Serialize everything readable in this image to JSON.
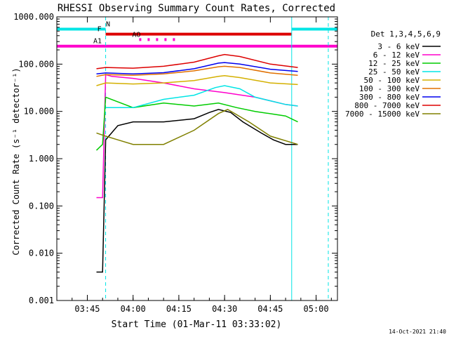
{
  "chart_data": {
    "type": "line",
    "title": "RHESSI Observing Summary Count Rates, Corrected",
    "xlabel": "Start Time (01-Mar-11 03:33:02)",
    "ylabel": "Corrected Count Rate (s⁻¹ detector⁻¹)",
    "y_scale": "log",
    "ylim": [
      0.001,
      1000
    ],
    "xlim": [
      "03:35",
      "05:07"
    ],
    "x_ticks": [
      "03:45",
      "04:00",
      "04:15",
      "04:30",
      "04:45",
      "05:00"
    ],
    "y_ticks": [
      "0.001",
      "0.010",
      "0.100",
      "1.000",
      "10.000",
      "100.000",
      "1000.000"
    ],
    "grid": false,
    "legend_title": "Det 1,3,4,5,6,9",
    "legend_position": "right",
    "series": [
      {
        "name": "3 - 6 keV",
        "color": "#000000",
        "x": [
          "03:48",
          "03:50",
          "03:51",
          "03:55",
          "04:00",
          "04:10",
          "04:20",
          "04:25",
          "04:28",
          "04:32",
          "04:36",
          "04:42",
          "04:46",
          "04:50",
          "04:54"
        ],
        "y": [
          0.004,
          0.004,
          2.5,
          5,
          6,
          6,
          7,
          9.5,
          11,
          9.5,
          6,
          3.5,
          2.5,
          2,
          2
        ]
      },
      {
        "name": "6 - 12 keV",
        "color": "#ff00cc",
        "x": [
          "03:48",
          "03:50",
          "03:51",
          "03:53",
          "04:00",
          "04:10",
          "04:20",
          "04:30",
          "04:40",
          "04:50",
          "04:54"
        ],
        "y": [
          0.15,
          0.15,
          60,
          55,
          50,
          40,
          30,
          25,
          20,
          14,
          13
        ]
      },
      {
        "name": "12 - 25 keV",
        "color": "#00cc00",
        "x": [
          "03:48",
          "03:50",
          "03:51",
          "04:00",
          "04:10",
          "04:20",
          "04:28",
          "04:34",
          "04:40",
          "04:50",
          "04:54"
        ],
        "y": [
          1.5,
          2,
          20,
          12,
          15,
          13,
          15,
          12,
          10,
          8,
          6
        ]
      },
      {
        "name": "25 - 50 keV",
        "color": "#00e5e5",
        "x": [
          "03:51",
          "04:00",
          "04:10",
          "04:20",
          "04:27",
          "04:30",
          "04:35",
          "04:40",
          "04:50",
          "04:54"
        ],
        "y": [
          12,
          12,
          18,
          22,
          32,
          35,
          30,
          20,
          14,
          13
        ]
      },
      {
        "name": "50 - 100 keV",
        "color": "#d4b000",
        "x": [
          "03:48",
          "03:51",
          "04:00",
          "04:10",
          "04:20",
          "04:28",
          "04:30",
          "04:35",
          "04:45",
          "04:54"
        ],
        "y": [
          35,
          40,
          38,
          40,
          45,
          55,
          57,
          52,
          40,
          37
        ]
      },
      {
        "name": "100 - 300 keV",
        "color": "#e07000",
        "x": [
          "03:48",
          "03:51",
          "04:00",
          "04:10",
          "04:20",
          "04:28",
          "04:30",
          "04:35",
          "04:45",
          "04:54"
        ],
        "y": [
          55,
          60,
          58,
          62,
          72,
          88,
          90,
          85,
          65,
          58
        ]
      },
      {
        "name": "300 - 800 keV",
        "color": "#0000ee",
        "x": [
          "03:48",
          "03:51",
          "04:00",
          "04:10",
          "04:20",
          "04:28",
          "04:30",
          "04:35",
          "04:45",
          "04:54"
        ],
        "y": [
          62,
          65,
          62,
          66,
          80,
          105,
          108,
          100,
          78,
          70
        ]
      },
      {
        "name": "800 - 7000 keV",
        "color": "#dd0000",
        "x": [
          "03:48",
          "03:51",
          "04:00",
          "04:10",
          "04:20",
          "04:28",
          "04:30",
          "04:35",
          "04:45",
          "04:54"
        ],
        "y": [
          80,
          85,
          82,
          90,
          110,
          150,
          160,
          145,
          100,
          85
        ]
      },
      {
        "name": "7000 - 15000 keV",
        "color": "#808000",
        "x": [
          "03:48",
          "03:51",
          "03:55",
          "04:00",
          "04:10",
          "04:20",
          "04:28",
          "04:31",
          "04:38",
          "04:45",
          "04:54"
        ],
        "y": [
          3.5,
          3,
          2.5,
          2,
          2,
          4,
          9,
          11,
          6,
          3,
          2
        ]
      }
    ],
    "flag_bars": [
      {
        "label": "N",
        "color": "#00e5e5",
        "level": 550,
        "ranges": [
          [
            "03:35",
            "03:51"
          ],
          [
            "04:52",
            "05:07"
          ]
        ]
      },
      {
        "label": "F",
        "color": "#dd0000",
        "level": 430,
        "ranges": [
          [
            "03:51",
            "04:52"
          ]
        ]
      },
      {
        "label": "AO",
        "color": "#ff00cc",
        "level": 330,
        "dotted": true,
        "ranges": [
          [
            "04:02",
            "04:14"
          ]
        ]
      },
      {
        "label": "A1",
        "color": "#ff00cc",
        "level": 240,
        "ranges": [
          [
            "03:35",
            "05:07"
          ]
        ]
      }
    ],
    "vertical_lines": [
      {
        "time": "03:35",
        "color": "#00e5e5",
        "dashed": true
      },
      {
        "time": "03:51",
        "color": "#00e5e5",
        "dashed": true
      },
      {
        "time": "04:52",
        "color": "#00e5e5",
        "dashed": false
      },
      {
        "time": "05:04",
        "color": "#00e5e5",
        "dashed": true
      }
    ]
  },
  "footer": {
    "timestamp": "14-Oct-2021 21:40"
  }
}
